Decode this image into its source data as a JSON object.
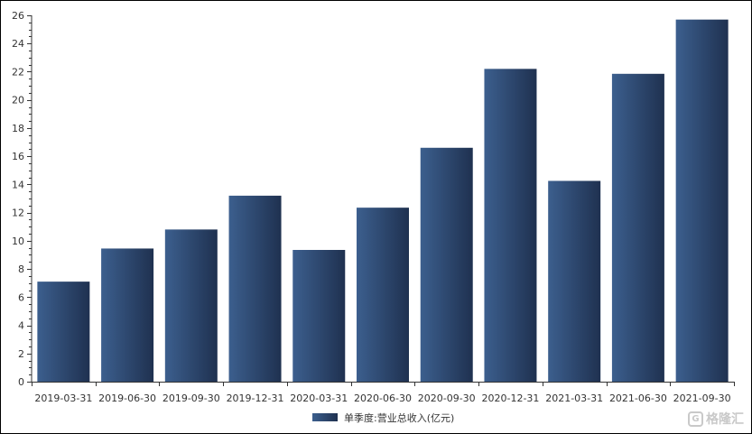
{
  "chart_data": {
    "type": "bar",
    "categories": [
      "2019-03-31",
      "2019-06-30",
      "2019-09-30",
      "2019-12-31",
      "2020-03-31",
      "2020-06-30",
      "2020-09-30",
      "2020-12-31",
      "2021-03-31",
      "2021-06-30",
      "2021-09-30"
    ],
    "series": [
      {
        "name": "单季度:营业总收入(亿元)",
        "values": [
          7.1,
          9.45,
          10.8,
          13.2,
          9.35,
          12.35,
          16.6,
          22.2,
          14.25,
          21.85,
          25.7
        ]
      }
    ],
    "ylim": [
      0,
      26
    ],
    "yticks": [
      0,
      2,
      4,
      6,
      8,
      10,
      12,
      14,
      16,
      18,
      20,
      22,
      24,
      26
    ],
    "title": "",
    "xlabel": "",
    "ylabel": "",
    "grid": false,
    "legend_position": "bottom-center",
    "colors": {
      "bar_dark": "#1f3150",
      "bar_light": "#3c5f8e",
      "axis": "#333333"
    }
  },
  "watermark": {
    "text": "格隆汇",
    "logo_glyph": "G"
  }
}
